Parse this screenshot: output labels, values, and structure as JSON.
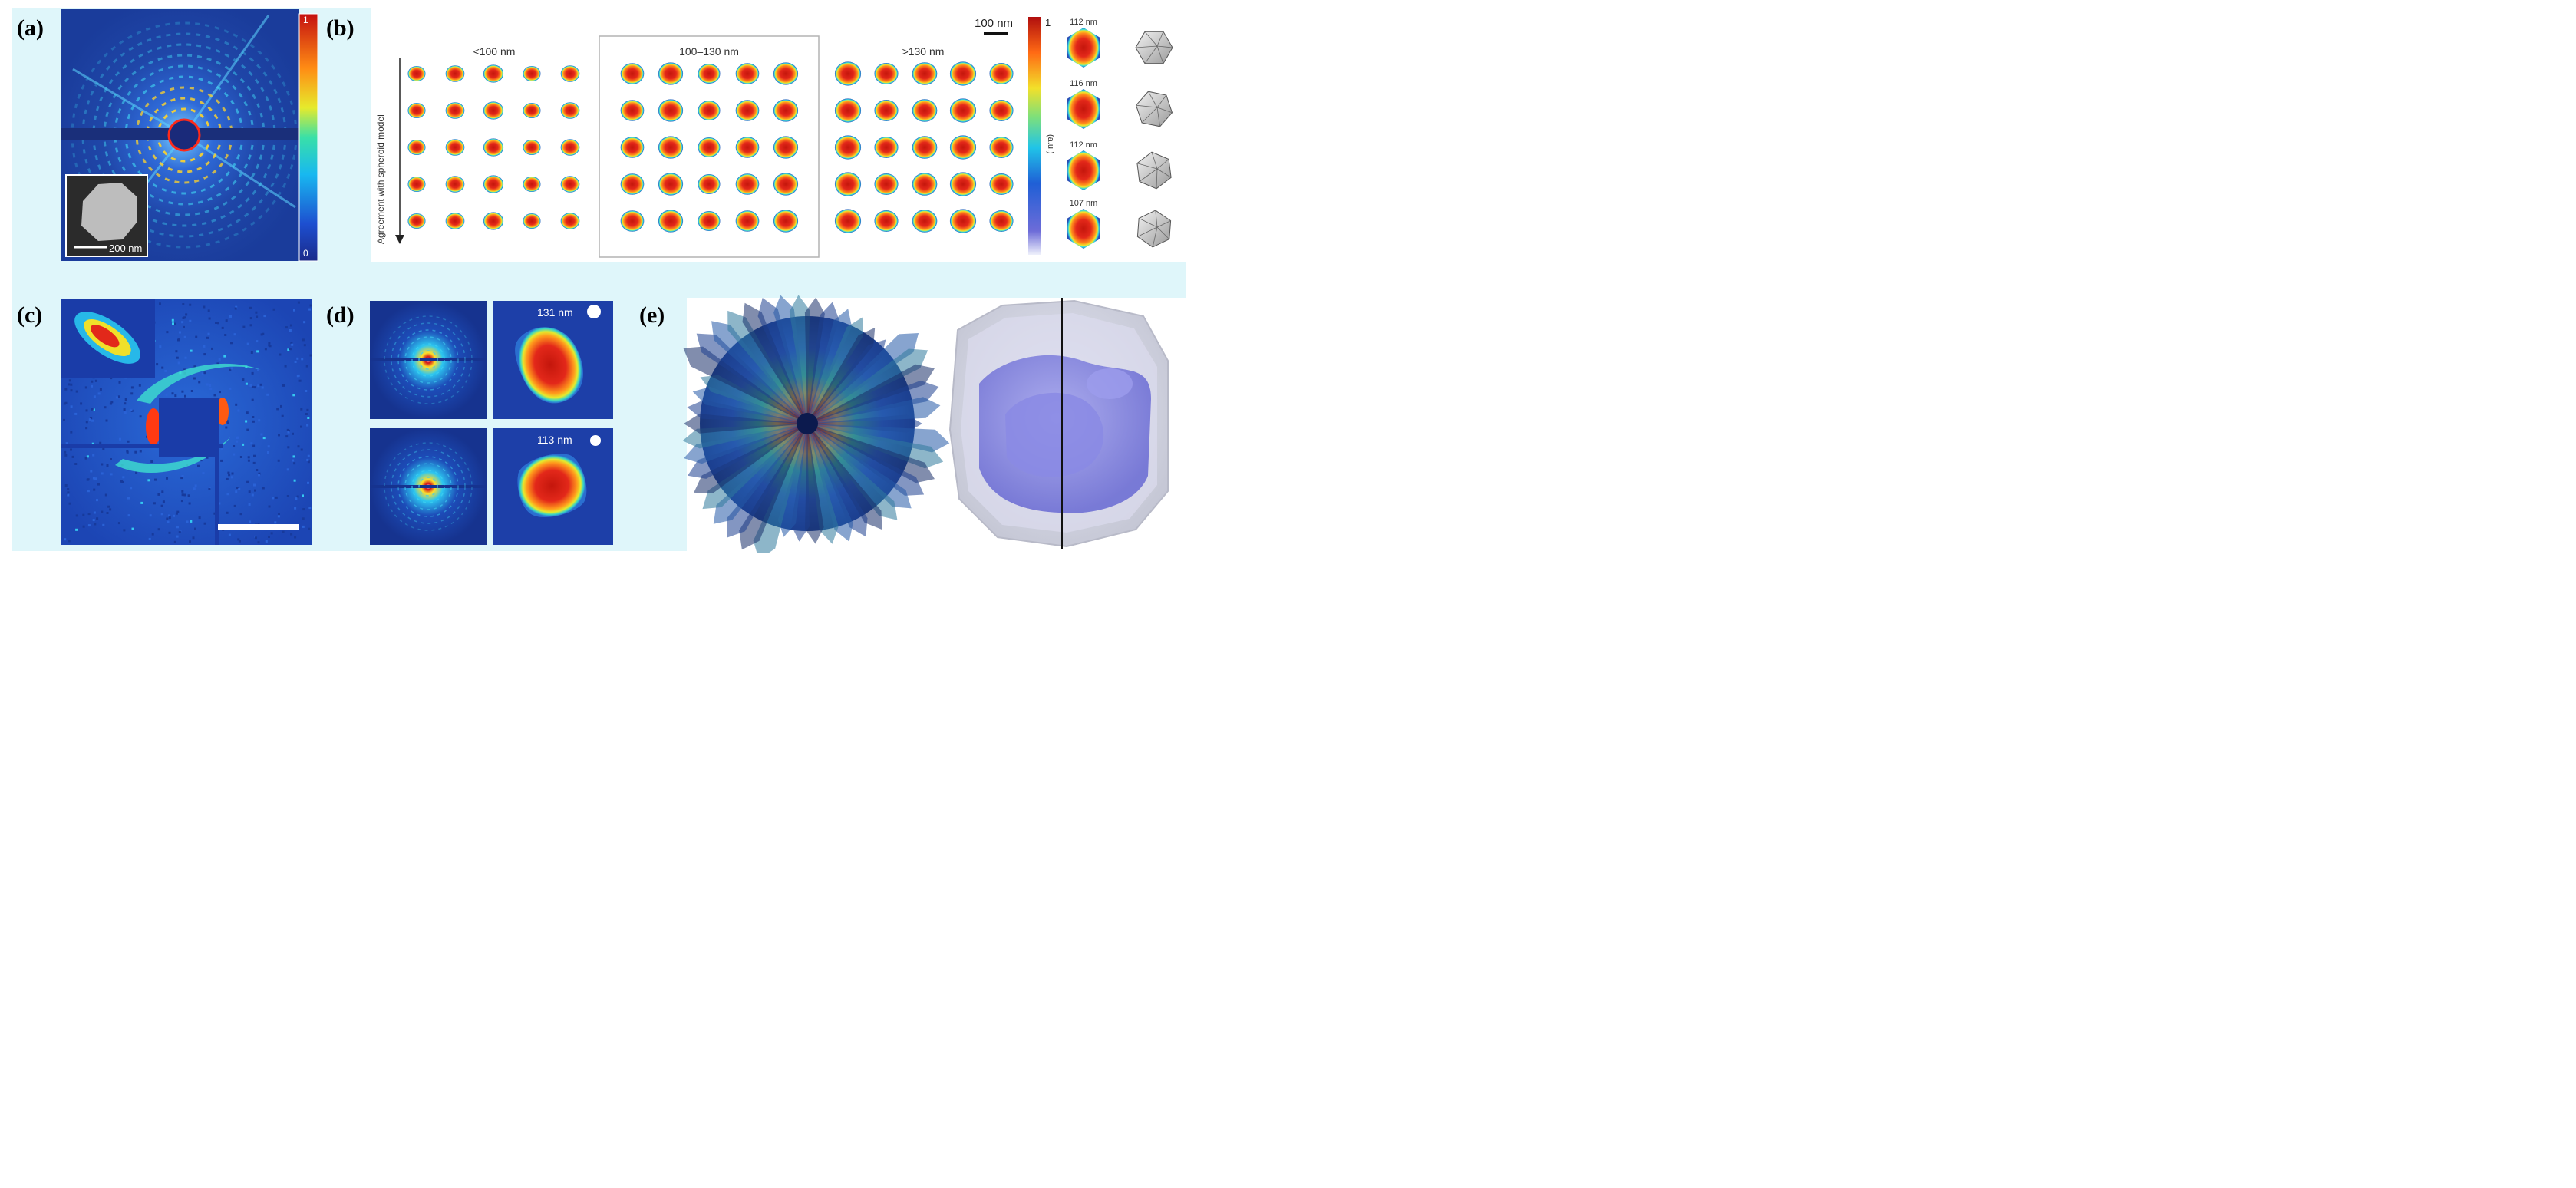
{
  "figure": {
    "panel_labels": [
      "(a)",
      "(b)",
      "(c)",
      "(d)",
      "(e)"
    ],
    "colors": {
      "background_tint": "#dff6fa",
      "field_blue": "#1a3c9b",
      "particle_red": "#d81e10",
      "box_gray": "#b3b3b3"
    }
  },
  "panel_a": {
    "colorbar_max": "1",
    "colorbar_min": "0",
    "inset_scale_bar": "200 nm"
  },
  "panel_b": {
    "groups": [
      "<100 nm",
      "100–130 nm",
      ">130 nm"
    ],
    "grid_rows": 5,
    "grid_cols": 5,
    "row_axis_label": "Agreement with spheroid model",
    "scale_bar": "100 nm",
    "colorbar_max": "1",
    "colorbar_unit": "(a.u.)",
    "particles": [
      {
        "size": "112 nm",
        "shape": "icosahedron"
      },
      {
        "size": "116 nm",
        "shape": "icosahedron"
      },
      {
        "size": "112 nm",
        "shape": "icosahedron"
      },
      {
        "size": "107 nm",
        "shape": "icosahedron"
      }
    ]
  },
  "panel_c": {
    "description": "diffraction pattern with reconstructed inset"
  },
  "panel_d": {
    "sizes": [
      "131 nm",
      "113 nm"
    ]
  },
  "panel_e": {
    "views": [
      "merged 3D diffraction volume",
      "reconstructed 3D density isosurface"
    ]
  }
}
